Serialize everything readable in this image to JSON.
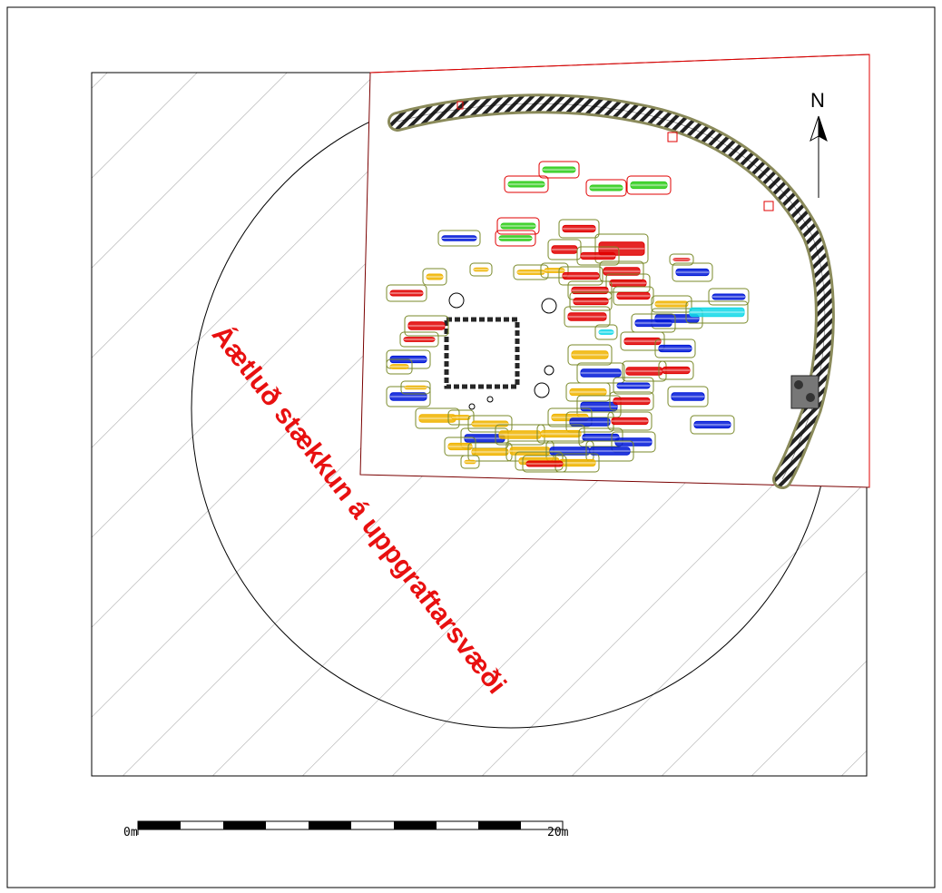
{
  "map": {
    "overlay_label": "Áætluð stækkun á uppgraftarsvæði",
    "north_label": "N",
    "scale_start_label": "0m",
    "scale_end_label": "20m",
    "scale_length_m": 20,
    "colors": {
      "frame": "#000000",
      "excavation_boundary": "#e00000",
      "wall_border": "#8a8a5a",
      "burial_outline": "#7a8a2a",
      "grave_red": "#e00000",
      "grave_blue": "#0018d8",
      "grave_green": "#2ecc1a",
      "grave_yellow": "#f0b400",
      "grave_cyan": "#10d8e8",
      "overlay_text": "#e81010"
    },
    "icons": {
      "north_arrow": "north-arrow-icon",
      "scale_bar": "scale-bar-icon"
    }
  }
}
